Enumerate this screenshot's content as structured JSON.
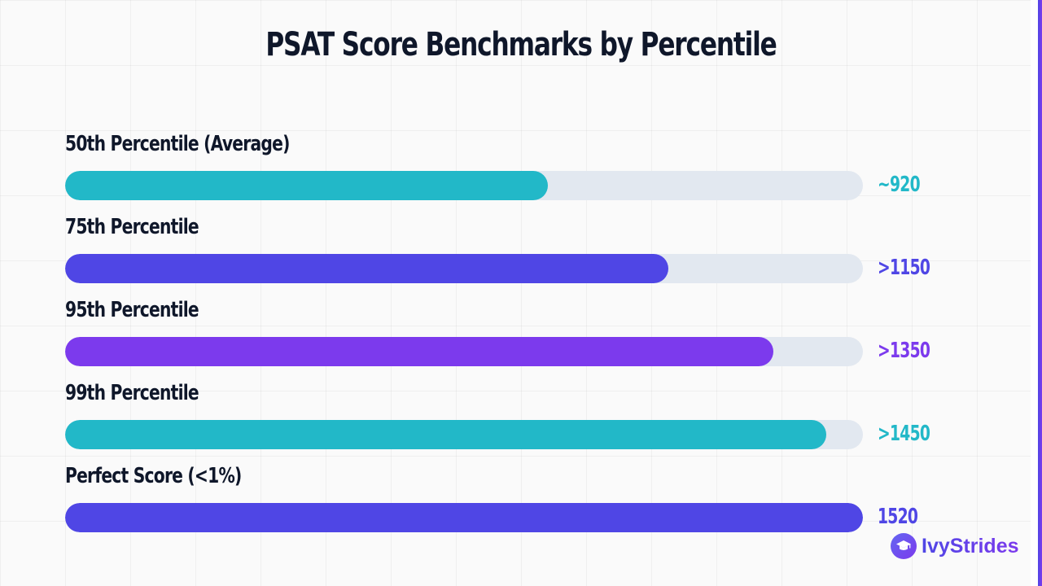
{
  "chart_data": {
    "type": "bar",
    "orientation": "horizontal",
    "title": "PSAT Score Benchmarks by Percentile",
    "xlim": [
      0,
      1520
    ],
    "grid": true,
    "categories": [
      "50th Percentile (Average)",
      "75th Percentile",
      "95th Percentile",
      "99th Percentile",
      "Perfect Score (<1%)"
    ],
    "values": [
      920,
      1150,
      1350,
      1450,
      1520
    ],
    "value_labels": [
      "~920",
      ">1150",
      ">1350",
      ">1450",
      "1520"
    ],
    "colors": [
      "#22b8c8",
      "#4f46e5",
      "#7c3aed",
      "#22b8c8",
      "#4f46e5"
    ],
    "track_color": "#e2e8f0"
  },
  "brand": {
    "name": "IvyStrides",
    "icon": "graduation-cap-icon",
    "colors": [
      "#4f46e5",
      "#7c3aed"
    ]
  }
}
